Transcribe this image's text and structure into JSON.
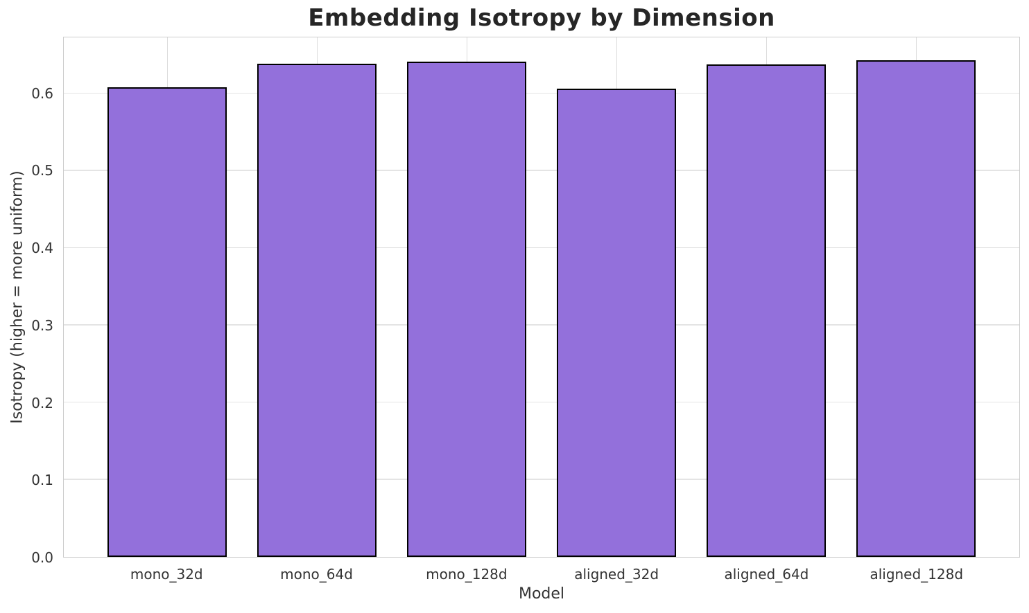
{
  "chart_data": {
    "type": "bar",
    "title": "Embedding Isotropy by Dimension",
    "xlabel": "Model",
    "ylabel": "Isotropy (higher = more uniform)",
    "categories": [
      "mono_32d",
      "mono_64d",
      "mono_128d",
      "aligned_32d",
      "aligned_64d",
      "aligned_128d"
    ],
    "values": [
      0.608,
      0.639,
      0.642,
      0.607,
      0.638,
      0.643
    ],
    "ylim": [
      0,
      0.673
    ],
    "yticks": [
      0.0,
      0.1,
      0.2,
      0.3,
      0.4,
      0.5,
      0.6
    ],
    "ytick_labels": [
      "0.0",
      "0.1",
      "0.2",
      "0.3",
      "0.4",
      "0.5",
      "0.6"
    ],
    "grid": true,
    "legend": "none",
    "bar_color": "#9370db",
    "bar_edge_color": "#000000",
    "grid_color_h": "#e4e4e4",
    "grid_color_v": "#dcdcdc",
    "spine_color": "#cccccc",
    "text_color": "#333333",
    "title_color": "#262626"
  }
}
